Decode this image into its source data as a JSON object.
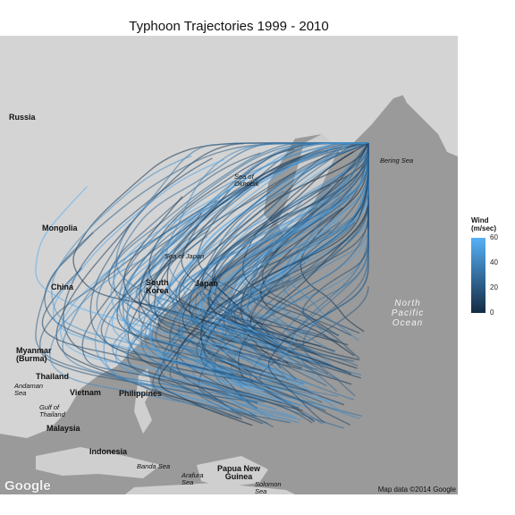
{
  "title": "Typhoon Trajectories 1999 - 2010",
  "labels": {
    "russia": "Russia",
    "mongolia": "Mongolia",
    "china": "China",
    "south_korea": "South Korea",
    "japan": "Japan",
    "myanmar": "Myanmar (Burma)",
    "thailand": "Thailand",
    "vietnam": "Vietnam",
    "philippines": "Philippines",
    "malaysia": "Malaysia",
    "indonesia": "Indonesia",
    "papua": "Papua New Guinea",
    "sea_of_okhotsk": "Sea of Okhotsk",
    "sea_of_japan": "Sea of Japan",
    "bering_sea": "Bering Sea",
    "andaman_sea": "Andaman Sea",
    "gulf_thailand": "Gulf of Thailand",
    "banda_sea": "Banda Sea",
    "arafura_sea": "Arafura Sea",
    "solomon_sea": "Solomon Sea",
    "north_pacific": "North Pacific Ocean"
  },
  "google_logo": "Google",
  "attribution": "Map data ©2014 Google",
  "legend": {
    "title": "Wind\n(m/sec)",
    "ticks": [
      60,
      40,
      20,
      0
    ],
    "range": [
      0,
      60
    ],
    "color_low": "#132b43",
    "color_high": "#56b1f7"
  }
}
